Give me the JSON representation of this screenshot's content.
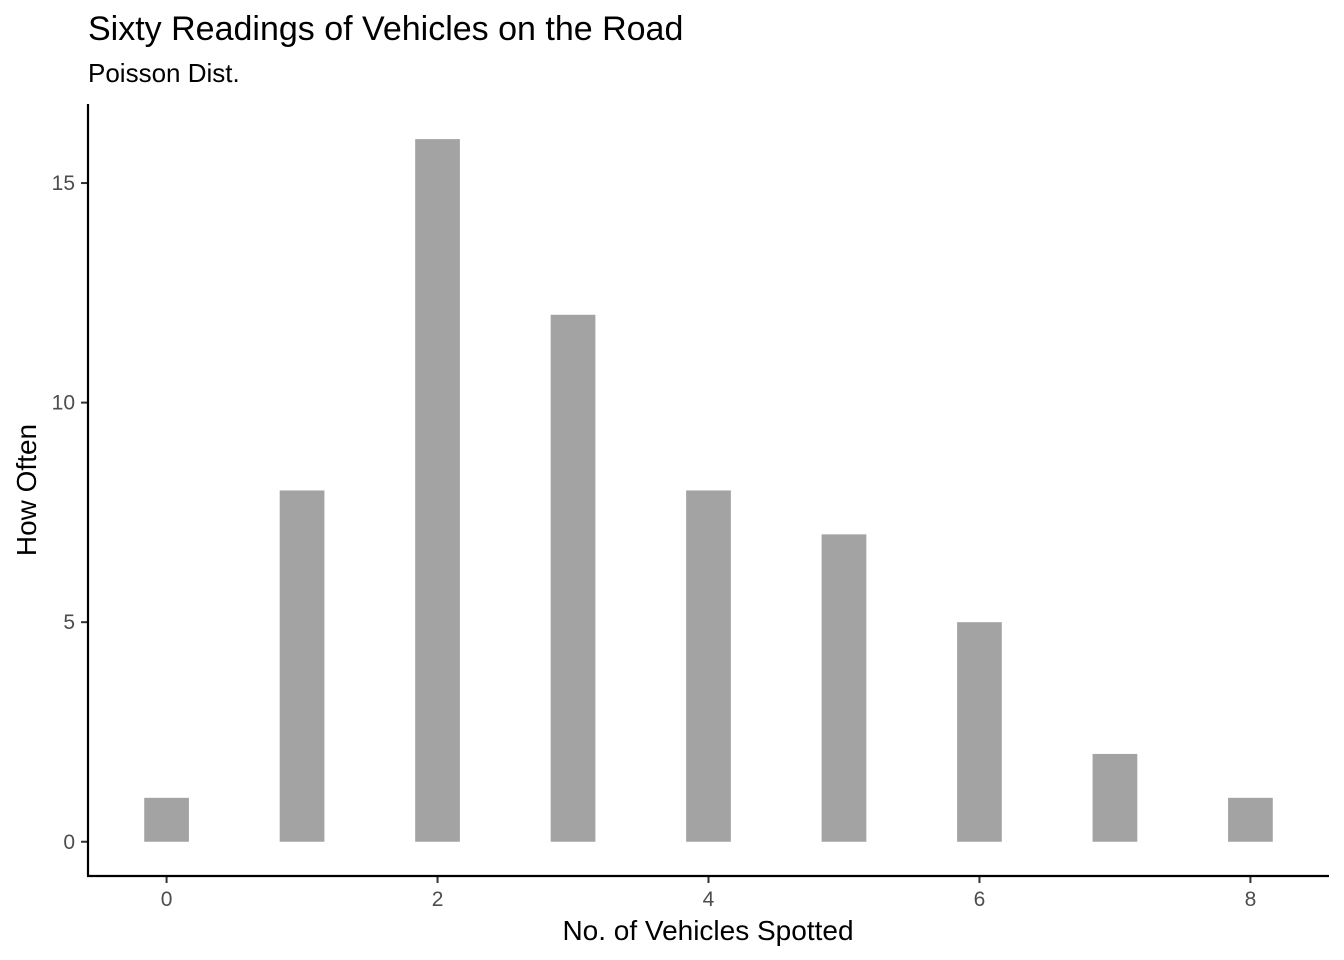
{
  "chart_data": {
    "type": "bar",
    "title": "Sixty Readings of Vehicles on the Road",
    "subtitle": "Poisson Dist.",
    "xlabel": "No. of Vehicles Spotted",
    "ylabel": "How Often",
    "categories": [
      0,
      1,
      2,
      3,
      4,
      5,
      6,
      7,
      8
    ],
    "values": [
      1,
      8,
      16,
      12,
      8,
      7,
      5,
      2,
      1
    ],
    "x_ticks": [
      0,
      2,
      4,
      6,
      8
    ],
    "y_ticks": [
      0,
      5,
      10,
      15
    ],
    "xlim": [
      -0.58,
      8.58
    ],
    "ylim": [
      -0.78,
      16.8
    ],
    "bar_color": "#a3a3a3",
    "grid": false,
    "legend": "none"
  }
}
